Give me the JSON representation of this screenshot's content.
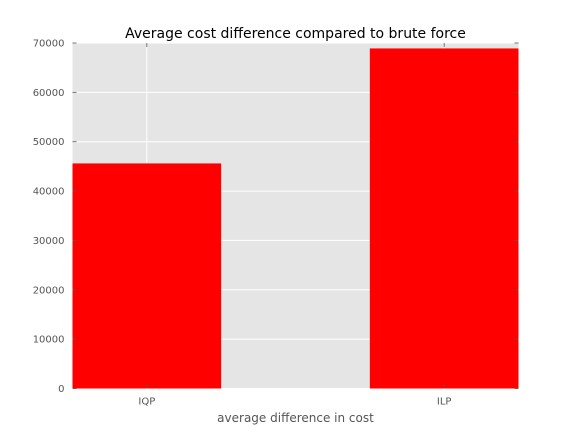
{
  "chart_data": {
    "type": "bar",
    "title": "Average cost difference compared to brute force",
    "xlabel": "average difference in cost",
    "ylabel": "",
    "categories": [
      "IQP",
      "ILP"
    ],
    "values": [
      45600,
      68900
    ],
    "ylim": [
      0,
      70000
    ],
    "yticks": [
      0,
      10000,
      20000,
      30000,
      40000,
      50000,
      60000,
      70000
    ],
    "grid": true,
    "bar_color": "#ff0000",
    "plot_background": "#e5e5e5",
    "grid_color": "#ffffff"
  }
}
